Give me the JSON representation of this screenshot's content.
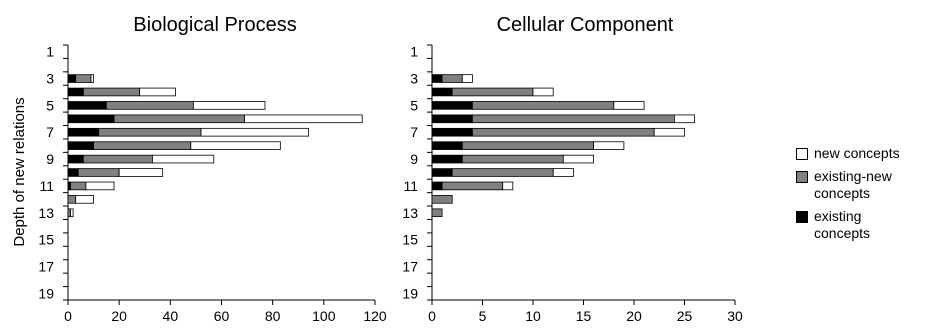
{
  "ylabel": "Depth of new relations",
  "legend": {
    "position": "right",
    "items": [
      {
        "key": "new",
        "label": "new concepts",
        "color": "#ffffff"
      },
      {
        "key": "existing_new",
        "label": "existing-new concepts",
        "color": "#808080"
      },
      {
        "key": "existing",
        "label": "existing concepts",
        "color": "#000000"
      }
    ]
  },
  "chart_data": [
    {
      "type": "bar",
      "orientation": "horizontal",
      "stacked": true,
      "title": "Biological Process",
      "ylabel": "Depth of new relations",
      "categories": [
        1,
        2,
        3,
        4,
        5,
        6,
        7,
        8,
        9,
        10,
        11,
        12,
        13,
        14,
        15,
        16,
        17,
        18,
        19
      ],
      "y_tick_labels": [
        "1",
        "3",
        "5",
        "7",
        "9",
        "11",
        "13",
        "15",
        "17",
        "19"
      ],
      "xlim": [
        0,
        120
      ],
      "x_ticks": [
        0,
        20,
        40,
        60,
        80,
        100,
        120
      ],
      "grid": false,
      "series": [
        {
          "name": "existing concepts",
          "values": [
            0,
            0,
            3,
            6,
            15,
            18,
            12,
            10,
            6,
            4,
            1,
            0,
            0,
            0,
            0,
            0,
            0,
            0,
            0
          ]
        },
        {
          "name": "existing-new concepts",
          "values": [
            0,
            0,
            6,
            22,
            34,
            51,
            40,
            38,
            27,
            16,
            6,
            3,
            1,
            0,
            0,
            0,
            0,
            0,
            0
          ]
        },
        {
          "name": "new concepts",
          "values": [
            0,
            0,
            1,
            14,
            28,
            46,
            42,
            35,
            24,
            17,
            11,
            7,
            1,
            0,
            0,
            0,
            0,
            0,
            0
          ]
        }
      ]
    },
    {
      "type": "bar",
      "orientation": "horizontal",
      "stacked": true,
      "title": "Cellular Component",
      "categories": [
        1,
        2,
        3,
        4,
        5,
        6,
        7,
        8,
        9,
        10,
        11,
        12,
        13,
        14,
        15,
        16,
        17,
        18,
        19
      ],
      "y_tick_labels": [
        "1",
        "3",
        "5",
        "7",
        "9",
        "11",
        "13",
        "15",
        "17",
        "19"
      ],
      "xlim": [
        0,
        30
      ],
      "x_ticks": [
        0,
        5,
        10,
        15,
        20,
        25,
        30
      ],
      "grid": false,
      "series": [
        {
          "name": "existing concepts",
          "values": [
            0,
            0,
            1,
            2,
            4,
            4,
            4,
            3,
            3,
            2,
            1,
            0,
            0,
            0,
            0,
            0,
            0,
            0,
            0
          ]
        },
        {
          "name": "existing-new concepts",
          "values": [
            0,
            0,
            2,
            8,
            14,
            20,
            18,
            13,
            10,
            10,
            6,
            2,
            1,
            0,
            0,
            0,
            0,
            0,
            0
          ]
        },
        {
          "name": "new concepts",
          "values": [
            0,
            0,
            1,
            2,
            3,
            2,
            3,
            3,
            3,
            2,
            1,
            0,
            0,
            0,
            0,
            0,
            0,
            0,
            0
          ]
        }
      ]
    }
  ]
}
